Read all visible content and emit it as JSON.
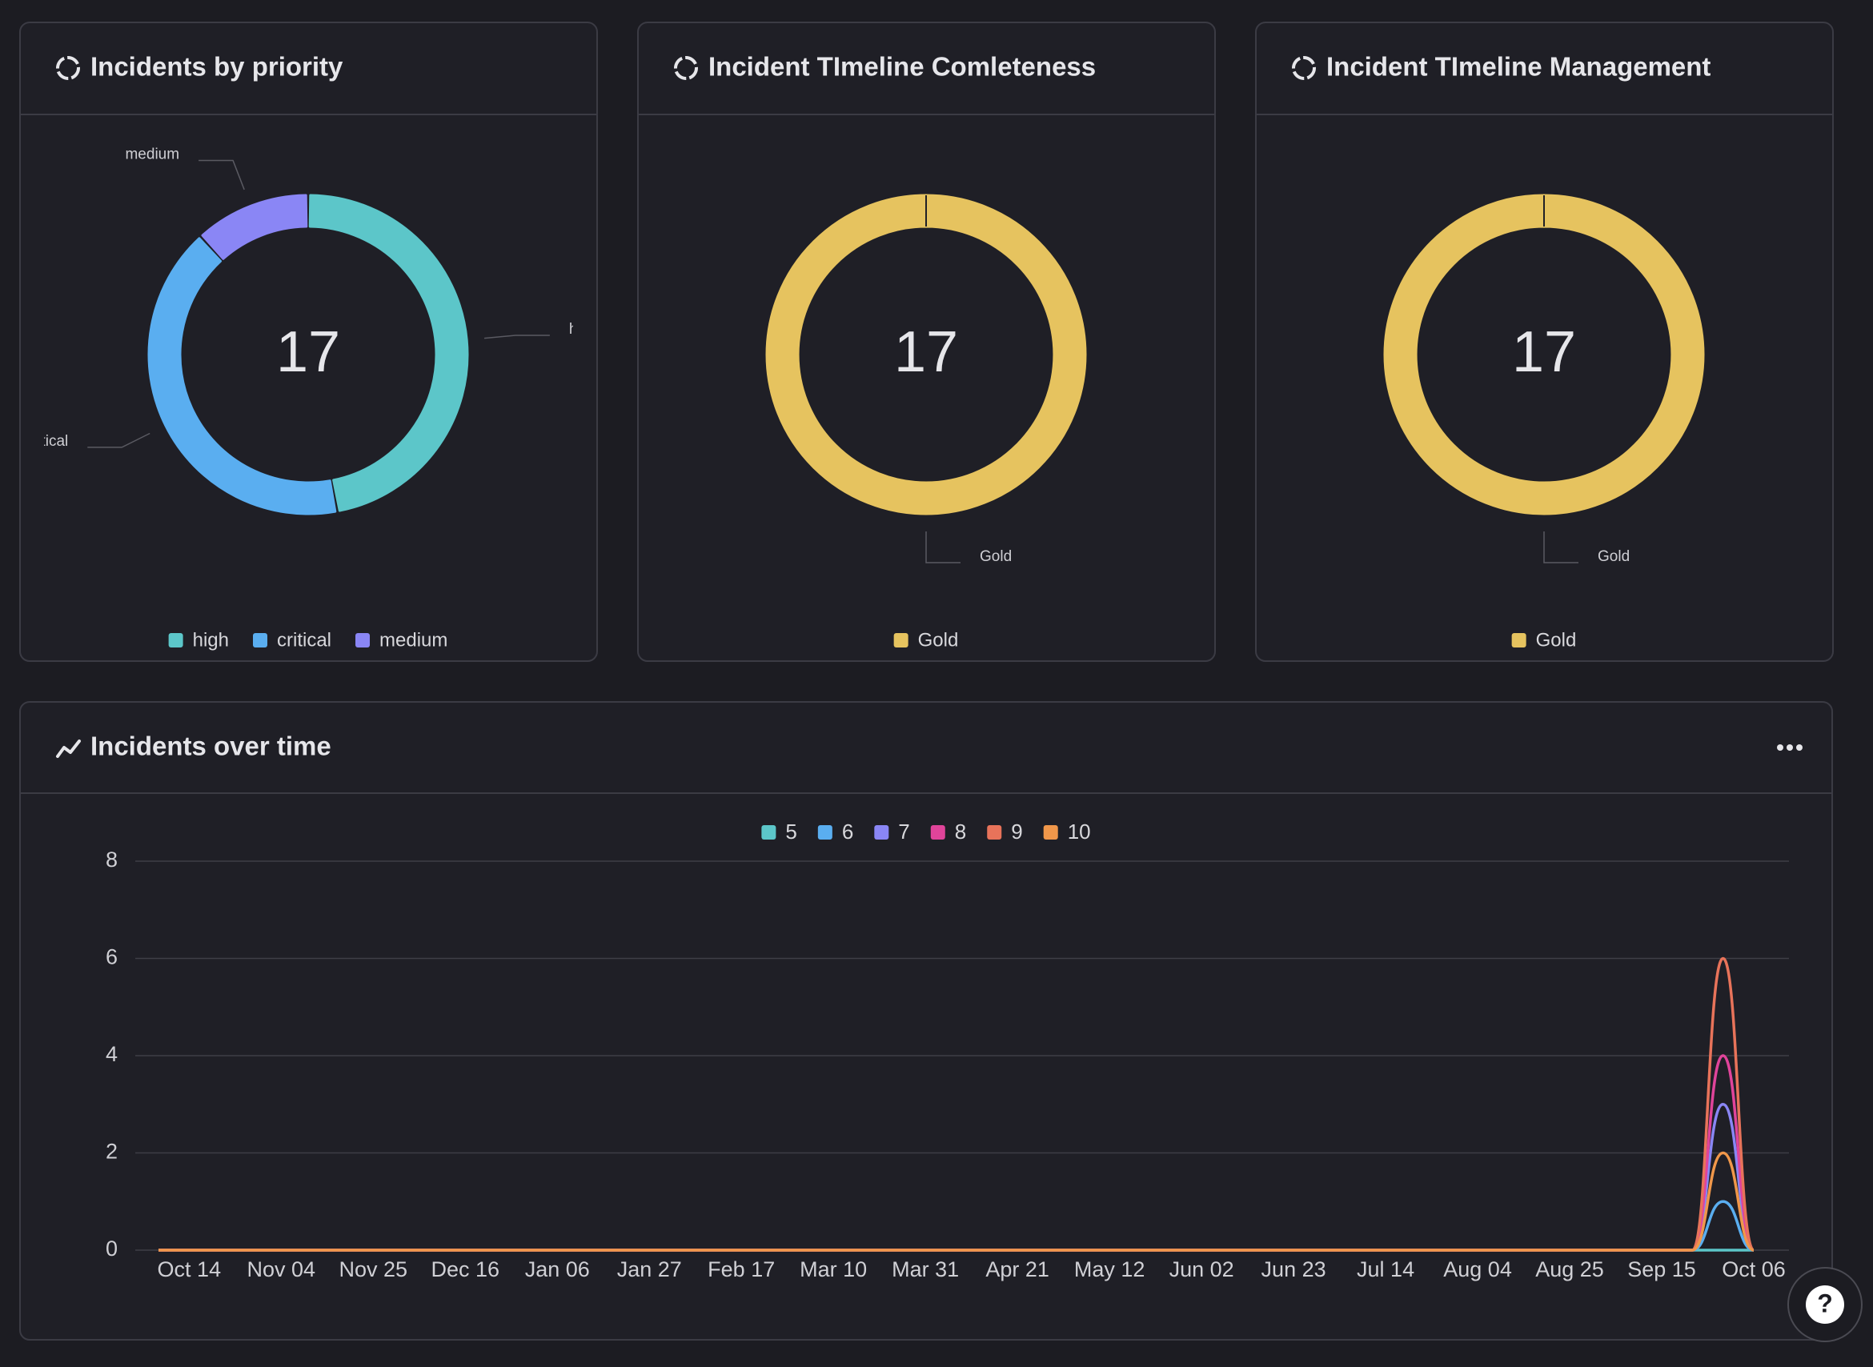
{
  "chart_data": [
    {
      "type": "donut",
      "title": "Incidents by priority",
      "center_label": 17,
      "categories": [
        "high",
        "critical",
        "medium"
      ],
      "values": [
        8,
        7,
        2
      ],
      "colors": [
        "#5cc6c9",
        "#5aaef0",
        "#8a86f5"
      ],
      "legend": "bottom"
    },
    {
      "type": "donut",
      "title": "Incident TImeline Comleteness",
      "center_label": 17,
      "categories": [
        "Gold"
      ],
      "values": [
        17
      ],
      "colors": [
        "#e6c35f"
      ],
      "legend": "bottom"
    },
    {
      "type": "donut",
      "title": "Incident TImeline Management",
      "center_label": 17,
      "categories": [
        "Gold"
      ],
      "values": [
        17
      ],
      "colors": [
        "#e6c35f"
      ],
      "legend": "bottom"
    },
    {
      "type": "line",
      "title": "Incidents over time",
      "categories": [
        null,
        "Oct 14",
        null,
        null,
        "Nov 04",
        null,
        null,
        "Nov 25",
        null,
        null,
        "Dec 16",
        null,
        null,
        "Jan 06",
        null,
        null,
        "Jan 27",
        null,
        null,
        "Feb 17",
        null,
        null,
        "Mar 10",
        null,
        null,
        "Mar 31",
        null,
        null,
        "Apr 21",
        null,
        null,
        "May 12",
        null,
        null,
        "Jun 02",
        null,
        null,
        "Jun 23",
        null,
        null,
        "Jul 14",
        null,
        null,
        "Aug 04",
        null,
        null,
        "Aug 25",
        null,
        null,
        "Sep 15",
        null,
        null,
        "Oct 06"
      ],
      "series": [
        {
          "name": "5",
          "color": "#5cc6c9",
          "values": [
            0,
            0,
            0,
            0,
            0,
            0,
            0,
            0,
            0,
            0,
            0,
            0,
            0,
            0,
            0,
            0,
            0,
            0,
            0,
            0,
            0,
            0,
            0,
            0,
            0,
            0,
            0,
            0,
            0,
            0,
            0,
            0,
            0,
            0,
            0,
            0,
            0,
            0,
            0,
            0,
            0,
            0,
            0,
            0,
            0,
            0,
            0,
            0,
            0,
            0,
            0,
            0,
            0
          ]
        },
        {
          "name": "6",
          "color": "#5aaef0",
          "values": [
            0,
            0,
            0,
            0,
            0,
            0,
            0,
            0,
            0,
            0,
            0,
            0,
            0,
            0,
            0,
            0,
            0,
            0,
            0,
            0,
            0,
            0,
            0,
            0,
            0,
            0,
            0,
            0,
            0,
            0,
            0,
            0,
            0,
            0,
            0,
            0,
            0,
            0,
            0,
            0,
            0,
            0,
            0,
            0,
            0,
            0,
            0,
            0,
            0,
            0,
            0,
            1,
            0
          ]
        },
        {
          "name": "7",
          "color": "#8a86f5",
          "values": [
            0,
            0,
            0,
            0,
            0,
            0,
            0,
            0,
            0,
            0,
            0,
            0,
            0,
            0,
            0,
            0,
            0,
            0,
            0,
            0,
            0,
            0,
            0,
            0,
            0,
            0,
            0,
            0,
            0,
            0,
            0,
            0,
            0,
            0,
            0,
            0,
            0,
            0,
            0,
            0,
            0,
            0,
            0,
            0,
            0,
            0,
            0,
            0,
            0,
            0,
            0,
            3,
            0
          ]
        },
        {
          "name": "8",
          "color": "#e0449a",
          "values": [
            0,
            0,
            0,
            0,
            0,
            0,
            0,
            0,
            0,
            0,
            0,
            0,
            0,
            0,
            0,
            0,
            0,
            0,
            0,
            0,
            0,
            0,
            0,
            0,
            0,
            0,
            0,
            0,
            0,
            0,
            0,
            0,
            0,
            0,
            0,
            0,
            0,
            0,
            0,
            0,
            0,
            0,
            0,
            0,
            0,
            0,
            0,
            0,
            0,
            0,
            0,
            4,
            0
          ]
        },
        {
          "name": "9",
          "color": "#e8735a",
          "values": [
            0,
            0,
            0,
            0,
            0,
            0,
            0,
            0,
            0,
            0,
            0,
            0,
            0,
            0,
            0,
            0,
            0,
            0,
            0,
            0,
            0,
            0,
            0,
            0,
            0,
            0,
            0,
            0,
            0,
            0,
            0,
            0,
            0,
            0,
            0,
            0,
            0,
            0,
            0,
            0,
            0,
            0,
            0,
            0,
            0,
            0,
            0,
            0,
            0,
            0,
            0,
            6,
            0
          ]
        },
        {
          "name": "10",
          "color": "#f0974a",
          "values": [
            0,
            0,
            0,
            0,
            0,
            0,
            0,
            0,
            0,
            0,
            0,
            0,
            0,
            0,
            0,
            0,
            0,
            0,
            0,
            0,
            0,
            0,
            0,
            0,
            0,
            0,
            0,
            0,
            0,
            0,
            0,
            0,
            0,
            0,
            0,
            0,
            0,
            0,
            0,
            0,
            0,
            0,
            0,
            0,
            0,
            0,
            0,
            0,
            0,
            0,
            0,
            2,
            0
          ]
        }
      ],
      "ylim": [
        0,
        8
      ],
      "yticks": [
        0,
        2,
        4,
        6,
        8
      ],
      "grid": true,
      "legend": "top"
    }
  ],
  "help_button": "?"
}
